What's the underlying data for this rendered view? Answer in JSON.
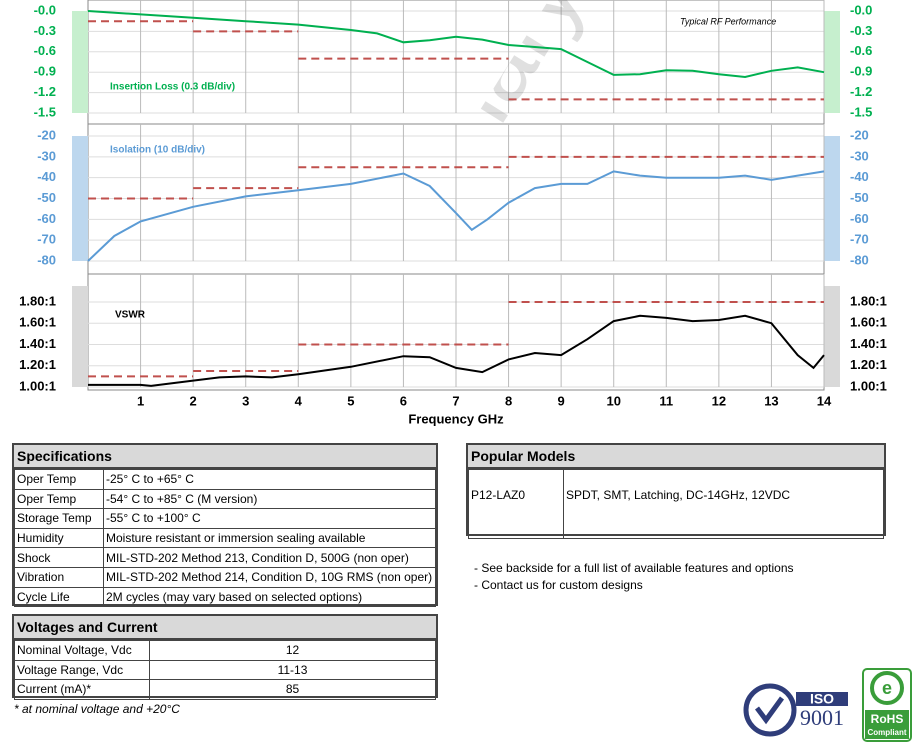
{
  "chart_data": [
    {
      "type": "line",
      "label": "Insertion Loss (0.3 dB/div)",
      "annotation": "Typical RF Performance",
      "watermark": "Preliminary",
      "xlim": [
        0,
        14
      ],
      "ylim": [
        -1.5,
        0
      ],
      "yticks": [
        {
          "value": 0,
          "label": "-0.0"
        },
        -0.3,
        -0.6,
        -0.9,
        -1.2,
        -1.5
      ],
      "tick_color": "#00b050",
      "band_color": "#c6efce",
      "grid": true,
      "x": [
        0,
        1,
        2,
        3,
        4,
        5,
        5.5,
        6,
        6.5,
        7,
        7.5,
        8,
        8.5,
        9,
        9.5,
        10,
        10.5,
        11,
        11.5,
        12,
        12.5,
        13,
        13.5,
        14
      ],
      "series": [
        {
          "color": "#00b050",
          "values": [
            0,
            -0.05,
            -0.1,
            -0.15,
            -0.2,
            -0.28,
            -0.33,
            -0.46,
            -0.43,
            -0.38,
            -0.42,
            -0.5,
            -0.53,
            -0.56,
            -0.75,
            -0.94,
            -0.93,
            -0.87,
            -0.88,
            -0.93,
            -0.97,
            -0.88,
            -0.83,
            -0.9
          ]
        }
      ],
      "limits": {
        "color": "#c0504d",
        "segments": [
          {
            "x": [
              0,
              2
            ],
            "value": -0.15
          },
          {
            "x": [
              2,
              4
            ],
            "value": -0.3
          },
          {
            "x": [
              4,
              8
            ],
            "value": -0.7
          },
          {
            "x": [
              8,
              14
            ],
            "value": -1.3
          }
        ]
      }
    },
    {
      "type": "line",
      "label": "Isolation (10 dB/div)",
      "xlim": [
        0,
        14
      ],
      "ylim": [
        -80,
        -20
      ],
      "yticks": [
        -20,
        -30,
        -40,
        -50,
        -60,
        -70,
        -80
      ],
      "tick_color": "#5b9bd5",
      "band_color": "#bdd7ee",
      "grid": true,
      "x": [
        0,
        0.5,
        1,
        2,
        3,
        4,
        5,
        6,
        6.5,
        7,
        7.3,
        7.6,
        8,
        8.5,
        9,
        9.5,
        10,
        10.5,
        11,
        12,
        12.5,
        13,
        14
      ],
      "series": [
        {
          "color": "#5b9bd5",
          "values": [
            -80,
            -68,
            -61,
            -54,
            -49,
            -46,
            -43,
            -38,
            -44,
            -57,
            -65,
            -60,
            -52,
            -45,
            -43,
            -43,
            -37,
            -39,
            -40,
            -40,
            -39,
            -41,
            -37
          ]
        }
      ],
      "limits": {
        "color": "#c0504d",
        "segments": [
          {
            "x": [
              0,
              2
            ],
            "value": -50
          },
          {
            "x": [
              2,
              4
            ],
            "value": -45
          },
          {
            "x": [
              4,
              8
            ],
            "value": -35
          },
          {
            "x": [
              8,
              14
            ],
            "value": -30
          }
        ]
      }
    },
    {
      "type": "line",
      "label": "VSWR",
      "xlim": [
        0,
        14
      ],
      "xticks": [
        1,
        2,
        3,
        4,
        5,
        6,
        7,
        8,
        9,
        10,
        11,
        12,
        13,
        14
      ],
      "xlabel": "Frequency GHz",
      "ylim": [
        1,
        1.95
      ],
      "yticks": [
        {
          "value": 1.8,
          "label": "1.80:1"
        },
        {
          "value": 1.6,
          "label": "1.60:1"
        },
        {
          "value": 1.4,
          "label": "1.40:1"
        },
        {
          "value": 1.2,
          "label": "1.20:1"
        },
        {
          "value": 1.0,
          "label": "1.00:1"
        }
      ],
      "tick_color": "#000000",
      "band_color": "#d9d9d9",
      "grid": true,
      "x": [
        0,
        1,
        1.2,
        2,
        2.5,
        3,
        3.5,
        4,
        5,
        6,
        6.5,
        7,
        7.5,
        8,
        8.5,
        9,
        9.5,
        10,
        10.5,
        11,
        11.5,
        12,
        12.5,
        13,
        13.5,
        13.8,
        14
      ],
      "series": [
        {
          "color": "#000000",
          "values": [
            1.02,
            1.02,
            1.01,
            1.06,
            1.09,
            1.1,
            1.09,
            1.12,
            1.19,
            1.29,
            1.28,
            1.18,
            1.14,
            1.26,
            1.32,
            1.3,
            1.45,
            1.62,
            1.67,
            1.65,
            1.62,
            1.63,
            1.67,
            1.6,
            1.3,
            1.18,
            1.3
          ]
        }
      ],
      "limits": {
        "color": "#c0504d",
        "segments": [
          {
            "x": [
              0,
              2
            ],
            "value": 1.1
          },
          {
            "x": [
              2,
              4
            ],
            "value": 1.15
          },
          {
            "x": [
              4,
              8
            ],
            "value": 1.4
          },
          {
            "x": [
              8,
              14
            ],
            "value": 1.8
          }
        ]
      }
    }
  ],
  "specifications": {
    "title": "Specifications",
    "rows": [
      [
        "Oper Temp",
        "-25° C to +65° C"
      ],
      [
        "Oper Temp",
        "-54° C to +85° C (M version)"
      ],
      [
        "Storage Temp",
        "-55° C to +100° C"
      ],
      [
        "Humidity",
        "Moisture resistant or immersion sealing available"
      ],
      [
        "Shock",
        "MIL-STD-202 Method 213, Condition D, 500G (non oper)"
      ],
      [
        "Vibration",
        "MIL-STD-202 Method 214, Condition D, 10G RMS (non oper)"
      ],
      [
        "Cycle Life",
        "2M cycles (may vary based on selected options)"
      ]
    ]
  },
  "voltages": {
    "title": "Voltages and Current",
    "rows": [
      [
        "Nominal Voltage, Vdc",
        "12"
      ],
      [
        "Voltage Range, Vdc",
        "11-13"
      ],
      [
        "Current (mA)*",
        "85"
      ]
    ],
    "footnote": "* at nominal voltage and +20°C"
  },
  "popular_models": {
    "title": "Popular Models",
    "rows": [
      [
        "P12-LAZ0",
        "SPDT, SMT, Latching, DC-14GHz, 12VDC"
      ]
    ]
  },
  "notes": [
    "- See backside for a full list of available features and options",
    "- Contact us for custom designs"
  ],
  "logos": {
    "iso": [
      "ISO",
      "9001"
    ],
    "rohs": [
      "RoHS",
      "Compliant"
    ]
  }
}
